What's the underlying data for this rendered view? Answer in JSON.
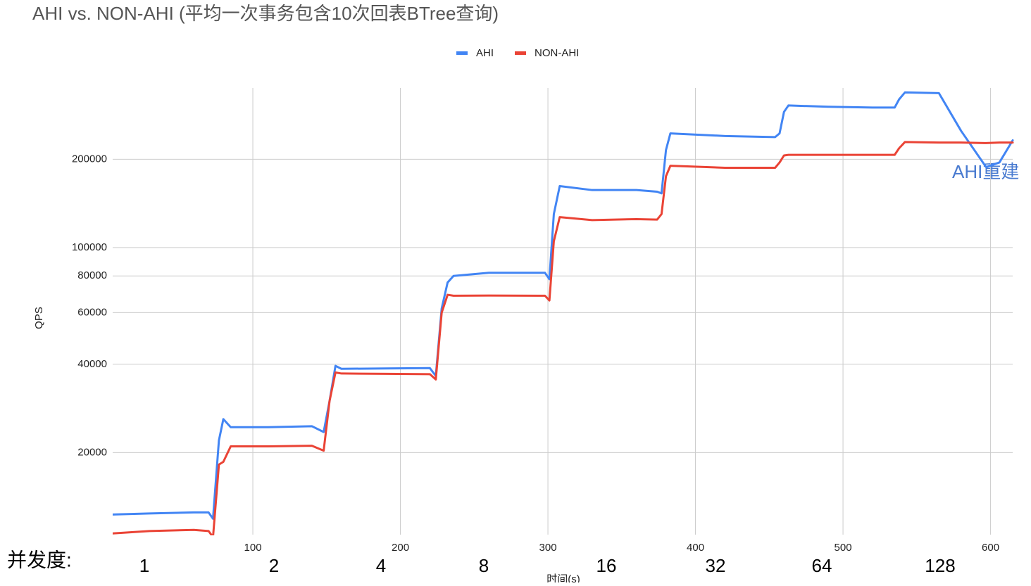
{
  "chart_data": {
    "type": "line",
    "title": "AHI vs. NON-AHI (平均一次事务包含10次回表BTree查询)",
    "x_label": "时间(s)",
    "y_label": "QPS",
    "y_scale": "log",
    "grid": true,
    "legend": "top",
    "annotation": "AHI重建",
    "concurrency_label": "并发度:",
    "concurrency_levels": [
      "1",
      "2",
      "4",
      "8",
      "16",
      "32",
      "64",
      "128"
    ],
    "x": [
      5,
      30,
      60,
      70,
      73,
      77,
      80,
      85,
      110,
      140,
      148,
      152,
      156,
      160,
      190,
      220,
      224,
      228,
      232,
      236,
      260,
      298,
      301,
      304,
      308,
      330,
      360,
      374,
      377,
      380,
      383,
      420,
      454,
      457,
      460,
      463,
      490,
      520,
      535,
      538,
      542,
      565,
      580,
      597,
      606,
      615
    ],
    "series": [
      {
        "name": "AHI",
        "color": "#4285f4",
        "values": [
          12300,
          12400,
          12500,
          12500,
          11900,
          22000,
          26000,
          24400,
          24400,
          24600,
          23500,
          30000,
          39500,
          38600,
          38700,
          38800,
          36500,
          62000,
          76000,
          80000,
          82000,
          82000,
          78000,
          130000,
          162000,
          157000,
          157000,
          155000,
          153000,
          215000,
          245000,
          240000,
          238000,
          245000,
          290000,
          305000,
          302000,
          300000,
          300000,
          320000,
          338000,
          336000,
          250000,
          188000,
          195000,
          232000
        ]
      },
      {
        "name": "NON-AHI",
        "color": "#ea4335",
        "values": [
          10600,
          10800,
          10900,
          10800,
          10300,
          18200,
          18600,
          21000,
          21000,
          21100,
          20300,
          30000,
          37500,
          37200,
          37100,
          37000,
          35500,
          60000,
          69000,
          68500,
          68600,
          68500,
          66000,
          105000,
          127000,
          124000,
          125000,
          124500,
          130000,
          175000,
          190000,
          187000,
          187000,
          195000,
          206000,
          207000,
          207000,
          207000,
          207000,
          218000,
          229000,
          228000,
          228000,
          227000,
          228000,
          228000
        ]
      }
    ],
    "xlim": [
      5,
      615
    ],
    "xticks": [
      100,
      200,
      300,
      400,
      500,
      600
    ],
    "ylim": [
      10500,
      350000
    ],
    "yticks": [
      20000,
      40000,
      60000,
      80000,
      100000,
      200000
    ]
  }
}
